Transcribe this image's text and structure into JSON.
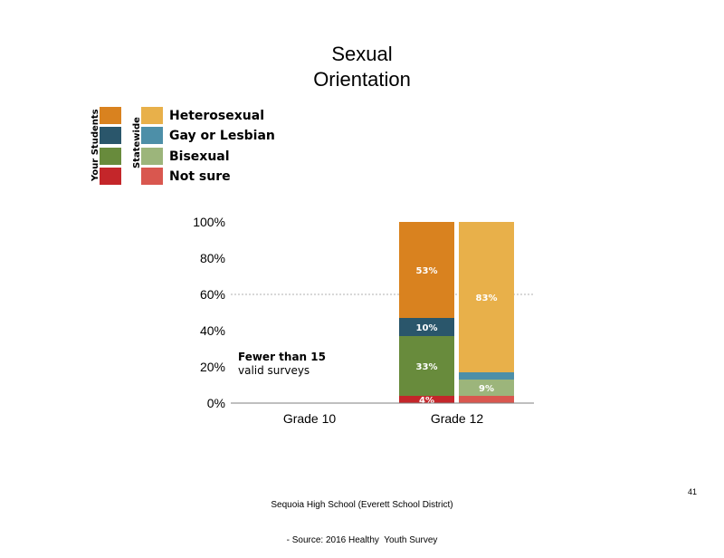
{
  "title_line1": "Sexual",
  "title_line2": "Orientation",
  "legend": {
    "group_labels": [
      "Your Students",
      "Statewide"
    ],
    "items": [
      {
        "label": "Heterosexual",
        "your_color": "#d9821f",
        "state_color": "#e8b04a"
      },
      {
        "label": "Gay or Lesbian",
        "your_color": "#2a566b",
        "state_color": "#4d8fa8"
      },
      {
        "label": "Bisexual",
        "your_color": "#688b3c",
        "state_color": "#9cb57b"
      },
      {
        "label": "Not sure",
        "your_color": "#c4262a",
        "state_color": "#d9574f"
      }
    ]
  },
  "chart_data": {
    "type": "bar",
    "stacked": true,
    "categories": [
      "Grade 10",
      "Grade 12"
    ],
    "ylim": [
      0,
      100
    ],
    "yticks": [
      "0%",
      "20%",
      "40%",
      "60%",
      "80%",
      "100%"
    ],
    "reference_line": 60,
    "annotation": [
      "Fewer than 15",
      "valid surveys"
    ],
    "series_order": [
      "Not sure",
      "Bisexual",
      "Gay or Lesbian",
      "Heterosexual"
    ],
    "bars": [
      {
        "category": "Grade 12",
        "group": "Your Students",
        "values": [
          4,
          33,
          10,
          53
        ],
        "labels": [
          "4%",
          "33%",
          "10%",
          "53%"
        ],
        "colors": [
          "#c4262a",
          "#688b3c",
          "#2a566b",
          "#d9821f"
        ]
      },
      {
        "category": "Grade 12",
        "group": "Statewide",
        "values": [
          4,
          9,
          4,
          83
        ],
        "labels": [
          "",
          "9%",
          "",
          "83%"
        ],
        "colors": [
          "#d9574f",
          "#9cb57b",
          "#4d8fa8",
          "#e8b04a"
        ]
      }
    ]
  },
  "footer_line1": "Sequoia High School (Everett School District)",
  "footer_line2": "- Source: 2016 Healthy  Youth Survey",
  "page_number": "41"
}
